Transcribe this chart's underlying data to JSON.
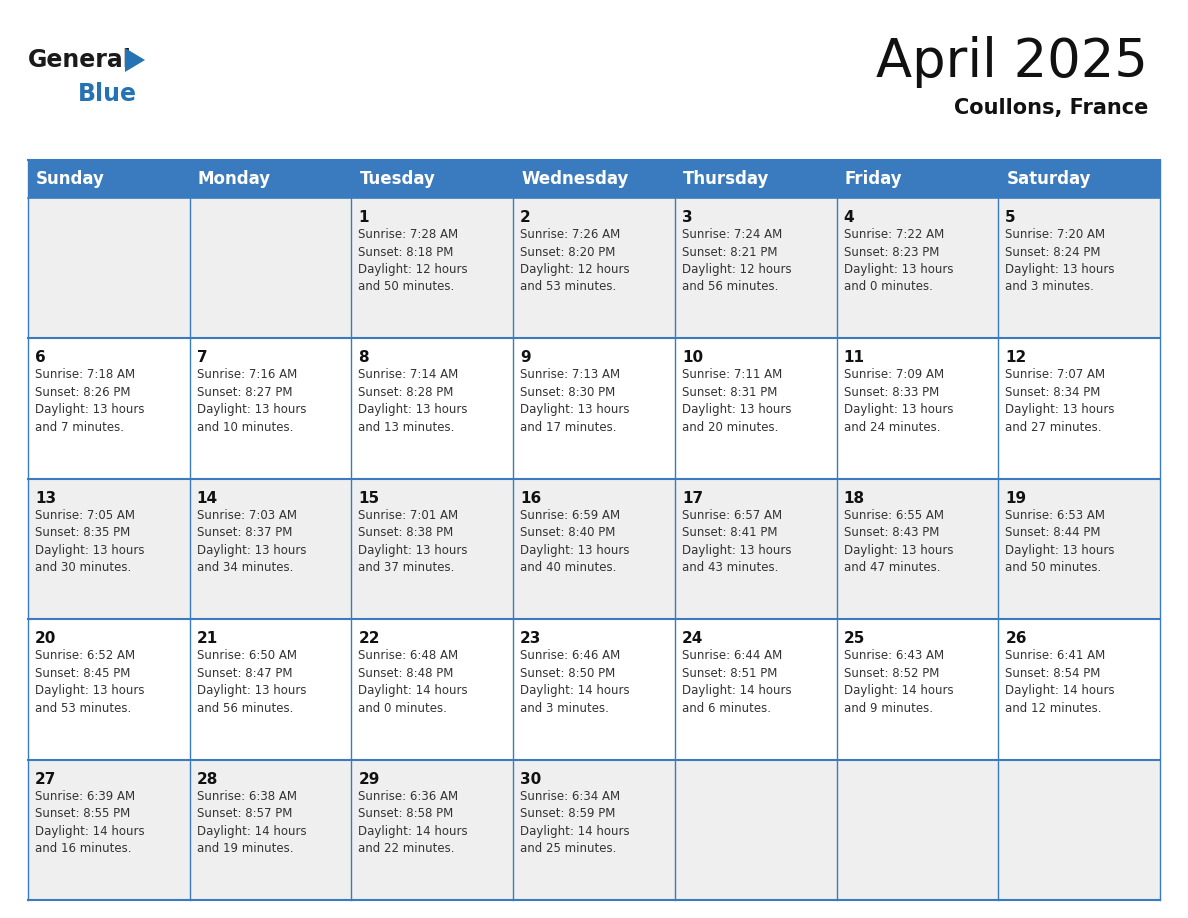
{
  "title": "April 2025",
  "subtitle": "Coullons, France",
  "header_bg": "#3a7bbf",
  "header_text": "#ffffff",
  "row_colors": [
    "#efefef",
    "#ffffff",
    "#efefef",
    "#ffffff",
    "#efefef"
  ],
  "border_color": "#3a7bbf",
  "days_of_week": [
    "Sunday",
    "Monday",
    "Tuesday",
    "Wednesday",
    "Thursday",
    "Friday",
    "Saturday"
  ],
  "weeks": [
    [
      {
        "day": "",
        "text": ""
      },
      {
        "day": "",
        "text": ""
      },
      {
        "day": "1",
        "text": "Sunrise: 7:28 AM\nSunset: 8:18 PM\nDaylight: 12 hours\nand 50 minutes."
      },
      {
        "day": "2",
        "text": "Sunrise: 7:26 AM\nSunset: 8:20 PM\nDaylight: 12 hours\nand 53 minutes."
      },
      {
        "day": "3",
        "text": "Sunrise: 7:24 AM\nSunset: 8:21 PM\nDaylight: 12 hours\nand 56 minutes."
      },
      {
        "day": "4",
        "text": "Sunrise: 7:22 AM\nSunset: 8:23 PM\nDaylight: 13 hours\nand 0 minutes."
      },
      {
        "day": "5",
        "text": "Sunrise: 7:20 AM\nSunset: 8:24 PM\nDaylight: 13 hours\nand 3 minutes."
      }
    ],
    [
      {
        "day": "6",
        "text": "Sunrise: 7:18 AM\nSunset: 8:26 PM\nDaylight: 13 hours\nand 7 minutes."
      },
      {
        "day": "7",
        "text": "Sunrise: 7:16 AM\nSunset: 8:27 PM\nDaylight: 13 hours\nand 10 minutes."
      },
      {
        "day": "8",
        "text": "Sunrise: 7:14 AM\nSunset: 8:28 PM\nDaylight: 13 hours\nand 13 minutes."
      },
      {
        "day": "9",
        "text": "Sunrise: 7:13 AM\nSunset: 8:30 PM\nDaylight: 13 hours\nand 17 minutes."
      },
      {
        "day": "10",
        "text": "Sunrise: 7:11 AM\nSunset: 8:31 PM\nDaylight: 13 hours\nand 20 minutes."
      },
      {
        "day": "11",
        "text": "Sunrise: 7:09 AM\nSunset: 8:33 PM\nDaylight: 13 hours\nand 24 minutes."
      },
      {
        "day": "12",
        "text": "Sunrise: 7:07 AM\nSunset: 8:34 PM\nDaylight: 13 hours\nand 27 minutes."
      }
    ],
    [
      {
        "day": "13",
        "text": "Sunrise: 7:05 AM\nSunset: 8:35 PM\nDaylight: 13 hours\nand 30 minutes."
      },
      {
        "day": "14",
        "text": "Sunrise: 7:03 AM\nSunset: 8:37 PM\nDaylight: 13 hours\nand 34 minutes."
      },
      {
        "day": "15",
        "text": "Sunrise: 7:01 AM\nSunset: 8:38 PM\nDaylight: 13 hours\nand 37 minutes."
      },
      {
        "day": "16",
        "text": "Sunrise: 6:59 AM\nSunset: 8:40 PM\nDaylight: 13 hours\nand 40 minutes."
      },
      {
        "day": "17",
        "text": "Sunrise: 6:57 AM\nSunset: 8:41 PM\nDaylight: 13 hours\nand 43 minutes."
      },
      {
        "day": "18",
        "text": "Sunrise: 6:55 AM\nSunset: 8:43 PM\nDaylight: 13 hours\nand 47 minutes."
      },
      {
        "day": "19",
        "text": "Sunrise: 6:53 AM\nSunset: 8:44 PM\nDaylight: 13 hours\nand 50 minutes."
      }
    ],
    [
      {
        "day": "20",
        "text": "Sunrise: 6:52 AM\nSunset: 8:45 PM\nDaylight: 13 hours\nand 53 minutes."
      },
      {
        "day": "21",
        "text": "Sunrise: 6:50 AM\nSunset: 8:47 PM\nDaylight: 13 hours\nand 56 minutes."
      },
      {
        "day": "22",
        "text": "Sunrise: 6:48 AM\nSunset: 8:48 PM\nDaylight: 14 hours\nand 0 minutes."
      },
      {
        "day": "23",
        "text": "Sunrise: 6:46 AM\nSunset: 8:50 PM\nDaylight: 14 hours\nand 3 minutes."
      },
      {
        "day": "24",
        "text": "Sunrise: 6:44 AM\nSunset: 8:51 PM\nDaylight: 14 hours\nand 6 minutes."
      },
      {
        "day": "25",
        "text": "Sunrise: 6:43 AM\nSunset: 8:52 PM\nDaylight: 14 hours\nand 9 minutes."
      },
      {
        "day": "26",
        "text": "Sunrise: 6:41 AM\nSunset: 8:54 PM\nDaylight: 14 hours\nand 12 minutes."
      }
    ],
    [
      {
        "day": "27",
        "text": "Sunrise: 6:39 AM\nSunset: 8:55 PM\nDaylight: 14 hours\nand 16 minutes."
      },
      {
        "day": "28",
        "text": "Sunrise: 6:38 AM\nSunset: 8:57 PM\nDaylight: 14 hours\nand 19 minutes."
      },
      {
        "day": "29",
        "text": "Sunrise: 6:36 AM\nSunset: 8:58 PM\nDaylight: 14 hours\nand 22 minutes."
      },
      {
        "day": "30",
        "text": "Sunrise: 6:34 AM\nSunset: 8:59 PM\nDaylight: 14 hours\nand 25 minutes."
      },
      {
        "day": "",
        "text": ""
      },
      {
        "day": "",
        "text": ""
      },
      {
        "day": "",
        "text": ""
      }
    ]
  ],
  "logo_color_general": "#1a1a1a",
  "logo_color_blue": "#2473b5",
  "logo_triangle_color": "#2473b5",
  "title_fontsize": 38,
  "subtitle_fontsize": 15,
  "header_fontsize": 12,
  "day_number_fontsize": 11,
  "cell_text_fontsize": 8.5
}
